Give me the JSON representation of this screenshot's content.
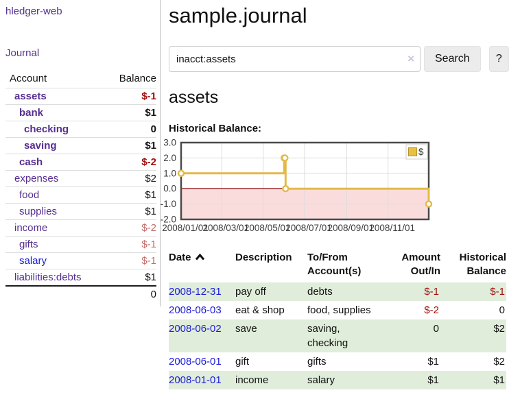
{
  "app": {
    "title": "hledger-web"
  },
  "sidebar": {
    "nav": {
      "journal": "Journal"
    },
    "table": {
      "account_header": "Account",
      "balance_header": "Balance"
    },
    "accounts": [
      {
        "name": "assets",
        "balance": "$-1",
        "indent": 1,
        "bold": true,
        "name_style": "visited",
        "balance_style": "neg-strong"
      },
      {
        "name": "bank",
        "balance": "$1",
        "indent": 2,
        "bold": true,
        "name_style": "visited",
        "balance_style": "normal"
      },
      {
        "name": "checking",
        "balance": "0",
        "indent": 3,
        "bold": true,
        "name_style": "visited",
        "balance_style": "normal"
      },
      {
        "name": "saving",
        "balance": "$1",
        "indent": 3,
        "bold": true,
        "name_style": "visited",
        "balance_style": "normal"
      },
      {
        "name": "cash",
        "balance": "$-2",
        "indent": 2,
        "bold": true,
        "name_style": "visited",
        "balance_style": "neg-strong"
      },
      {
        "name": "expenses",
        "balance": "$2",
        "indent": 1,
        "bold": false,
        "name_style": "visited",
        "balance_style": "normal"
      },
      {
        "name": "food",
        "balance": "$1",
        "indent": 2,
        "bold": false,
        "name_style": "visited",
        "balance_style": "normal"
      },
      {
        "name": "supplies",
        "balance": "$1",
        "indent": 2,
        "bold": false,
        "name_style": "visited",
        "balance_style": "normal"
      },
      {
        "name": "income",
        "balance": "$-2",
        "indent": 1,
        "bold": false,
        "name_style": "visited",
        "balance_style": "neg-soft"
      },
      {
        "name": "gifts",
        "balance": "$-1",
        "indent": 2,
        "bold": false,
        "name_style": "visited",
        "balance_style": "neg-soft"
      },
      {
        "name": "salary",
        "balance": "$-1",
        "indent": 2,
        "bold": false,
        "name_style": "unvisited",
        "balance_style": "neg-soft"
      },
      {
        "name": "liabilities:debts",
        "balance": "$1",
        "indent": 1,
        "bold": false,
        "name_style": "visited",
        "balance_style": "normal"
      }
    ],
    "total_balance": "0"
  },
  "main": {
    "page_title": "sample.journal",
    "search": {
      "value": "inacct:assets",
      "clear_icon": "×",
      "search_button": "Search",
      "help_button": "?"
    },
    "section_title": "assets",
    "chart_title": "Historical Balance:"
  },
  "chart_data": {
    "type": "line",
    "step": true,
    "title": "Historical Balance",
    "series": [
      {
        "name": "$",
        "points": [
          [
            "2008-01-01",
            1
          ],
          [
            "2008-06-01",
            2
          ],
          [
            "2008-06-02",
            2
          ],
          [
            "2008-06-03",
            0
          ],
          [
            "2008-12-31",
            -1
          ]
        ]
      }
    ],
    "x_range": [
      "2008-01-01",
      "2008-12-31"
    ],
    "ylim": [
      -2,
      3
    ],
    "yticks": [
      3,
      2,
      1,
      0,
      -1,
      -2
    ],
    "ytick_labels": [
      "3.0",
      "2.0",
      "1.0",
      "0.0",
      "-1.0",
      "-2.0"
    ],
    "xtick_labels": [
      "2008/01/01",
      "2008/03/01",
      "2008/05/01",
      "2008/07/01",
      "2008/09/01",
      "2008/11/01"
    ],
    "legend": {
      "label": "$",
      "position": "top-right"
    },
    "grid": true,
    "colors": {
      "line": "#e3ba49",
      "marker_fill": "#ffffff",
      "negative_fill": "#fbdcdc",
      "zero_line": "#8f0e0e",
      "frame": "#4a4a4a",
      "grid": "#dcdcdc",
      "legend_square": "#e8c042",
      "legend_square_border": "#b5932f"
    }
  },
  "register": {
    "headers": {
      "date": "Date",
      "description": "Description",
      "account_line1": "To/From",
      "account_line2": "Account(s)",
      "amount_line1": "Amount",
      "amount_line2": "Out/In",
      "balance_line1": "Historical",
      "balance_line2": "Balance"
    },
    "rows": [
      {
        "date": "2008-12-31",
        "description": "pay off",
        "accounts": "debts",
        "amount": "$-1",
        "amount_style": "neg",
        "balance": "$-1",
        "balance_style": "neg"
      },
      {
        "date": "2008-06-03",
        "description": "eat & shop",
        "accounts": "food, supplies",
        "amount": "$-2",
        "amount_style": "neg",
        "balance": "0",
        "balance_style": "normal"
      },
      {
        "date": "2008-06-02",
        "description": "save",
        "accounts": "saving, checking",
        "amount": "0",
        "amount_style": "normal",
        "balance": "$2",
        "balance_style": "normal"
      },
      {
        "date": "2008-06-01",
        "description": "gift",
        "accounts": "gifts",
        "amount": "$1",
        "amount_style": "normal",
        "balance": "$2",
        "balance_style": "normal"
      },
      {
        "date": "2008-01-01",
        "description": "income",
        "accounts": "salary",
        "amount": "$1",
        "amount_style": "normal",
        "balance": "$1",
        "balance_style": "normal"
      }
    ]
  }
}
